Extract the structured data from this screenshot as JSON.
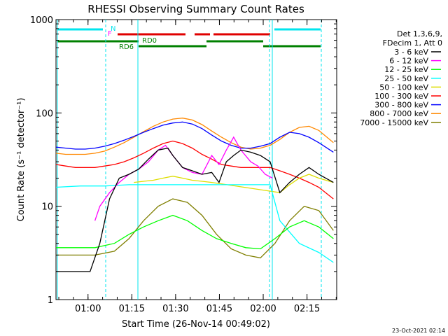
{
  "chart_data": {
    "type": "line",
    "title": "RHESSI Observing Summary Count Rates",
    "xlabel": "Start Time (26-Nov-14 00:49:02)",
    "ylabel": "Count Rate (s⁻¹ detector⁻¹)",
    "yscale": "log",
    "ylim": [
      1,
      1000
    ],
    "xlim": [
      0,
      5768
    ],
    "x_units": "seconds after 26-Nov-14 00:49:02",
    "x_ticks": [
      {
        "label": "01:00",
        "value": 658
      },
      {
        "label": "01:15",
        "value": 1558
      },
      {
        "label": "01:30",
        "value": 2458
      },
      {
        "label": "01:45",
        "value": 3358
      },
      {
        "label": "02:00",
        "value": 4258
      },
      {
        "label": "02:15",
        "value": 5158
      }
    ],
    "y_ticks": [
      {
        "label": "1",
        "value": 1
      },
      {
        "label": "10",
        "value": 10
      },
      {
        "label": "100",
        "value": 100
      },
      {
        "label": "1000",
        "value": 1000
      }
    ],
    "legend_header": [
      "Det 1,3,6,9,",
      "FDecim 1, Att 0"
    ],
    "legend_placement": "right",
    "footer_date": "23-Oct-2021 02:14",
    "flags": [
      {
        "label": "N",
        "color": "#00e5ee"
      },
      {
        "label": "F",
        "color": "#ff00ff"
      },
      {
        "label": "RD0",
        "color": "#008000"
      },
      {
        "label": "RD6",
        "color": "#008000"
      }
    ],
    "series": [
      {
        "name": "3 - 6 keV",
        "color": "#000000",
        "x": [
          0,
          700,
          900,
          1100,
          1300,
          1500,
          1700,
          1900,
          2100,
          2300,
          2400,
          2600,
          2800,
          3000,
          3200,
          3350,
          3500,
          3650,
          3800,
          4000,
          4200,
          4400,
          4600,
          4800,
          5000,
          5200,
          5400,
          5700
        ],
        "values": [
          2,
          2,
          4,
          12,
          20,
          22,
          25,
          32,
          40,
          42,
          35,
          26,
          24,
          22,
          23,
          18,
          30,
          35,
          40,
          38,
          35,
          30,
          14,
          18,
          22,
          26,
          22,
          18
        ]
      },
      {
        "name": "6 - 12 keV",
        "color": "#ff00ff",
        "x": [
          800,
          900,
          1100,
          1300,
          1500,
          1700,
          1900,
          2100,
          2250,
          2400,
          2600,
          2800,
          3000,
          3200,
          3350,
          3500,
          3650,
          3800,
          4000,
          4150,
          4300,
          4450
        ],
        "values": [
          7,
          10,
          14,
          18,
          22,
          25,
          30,
          40,
          45,
          35,
          26,
          23,
          22,
          35,
          28,
          40,
          55,
          40,
          30,
          27,
          22,
          20
        ]
      },
      {
        "name": "12 - 25 keV",
        "color": "#00ff00",
        "x": [
          0,
          800,
          1200,
          1500,
          1800,
          2100,
          2400,
          2700,
          3000,
          3300,
          3600,
          3900,
          4200,
          4500,
          4800,
          5100,
          5400,
          5700
        ],
        "values": [
          3.6,
          3.6,
          4,
          5,
          6,
          7,
          8,
          7,
          5.5,
          4.5,
          4,
          3.6,
          3.5,
          4.5,
          6,
          7,
          6,
          4.5
        ]
      },
      {
        "name": "25 - 50 keV",
        "color": "#00ffff",
        "x": [
          0,
          500,
          1000,
          1500,
          2000,
          2500,
          3000,
          3500,
          4000,
          4400,
          4600,
          5000,
          5400,
          5700
        ],
        "values": [
          16,
          16.5,
          16.5,
          17,
          17,
          17,
          17,
          17,
          17,
          17,
          7,
          4,
          3.2,
          2.5
        ]
      },
      {
        "name": "50 - 100 keV",
        "color": "#dddd00",
        "x": [
          1600,
          1800,
          2000,
          2200,
          2400,
          2600,
          2800,
          3000,
          3200,
          4600,
          4800,
          5000,
          5200,
          5400,
          5700
        ],
        "values": [
          18,
          18.5,
          19,
          20,
          21,
          20,
          19,
          18.5,
          18,
          14,
          17,
          20,
          22,
          20,
          18
        ]
      },
      {
        "name": "100 - 300 keV",
        "color": "#ff0000",
        "x": [
          0,
          200,
          400,
          600,
          800,
          1000,
          1200,
          1400,
          1600,
          1800,
          2000,
          2200,
          2400,
          2600,
          2800,
          3000,
          3200,
          3400,
          3600,
          3800,
          4000,
          4200,
          4400,
          4600,
          4800,
          5000,
          5200,
          5400,
          5700
        ],
        "values": [
          28,
          27,
          26,
          26,
          26,
          27,
          28,
          30,
          33,
          37,
          42,
          47,
          50,
          47,
          42,
          36,
          32,
          28,
          27,
          26,
          26,
          26,
          26,
          24,
          22,
          20,
          18,
          16,
          12
        ]
      },
      {
        "name": "300 - 800 keV",
        "color": "#0000ff",
        "x": [
          0,
          200,
          400,
          600,
          800,
          1000,
          1200,
          1400,
          1600,
          1800,
          2000,
          2200,
          2400,
          2600,
          2800,
          3000,
          3200,
          3400,
          3600,
          3800,
          4000,
          4200,
          4400,
          4600,
          4800,
          5000,
          5200,
          5400,
          5700
        ],
        "values": [
          43,
          42,
          41,
          41,
          42,
          44,
          47,
          51,
          56,
          62,
          68,
          74,
          78,
          80,
          76,
          68,
          58,
          50,
          45,
          42,
          42,
          44,
          47,
          55,
          62,
          60,
          55,
          48,
          38
        ]
      },
      {
        "name": "800 - 7000 keV",
        "color": "#ff8800",
        "x": [
          0,
          200,
          400,
          600,
          800,
          1000,
          1200,
          1400,
          1600,
          1800,
          2000,
          2200,
          2400,
          2600,
          2800,
          3000,
          3200,
          3400,
          3600,
          3800,
          4000,
          4200,
          4400,
          4600,
          4800,
          5000,
          5200,
          5400,
          5700
        ],
        "values": [
          37,
          36,
          36,
          36,
          37,
          39,
          43,
          48,
          55,
          63,
          72,
          80,
          86,
          88,
          84,
          75,
          64,
          55,
          48,
          43,
          41,
          42,
          45,
          52,
          62,
          70,
          72,
          65,
          48
        ]
      },
      {
        "name": "7000 - 15000 keV",
        "color": "#7f7f00",
        "x": [
          0,
          800,
          1200,
          1500,
          1800,
          2100,
          2400,
          2700,
          3000,
          3300,
          3600,
          3900,
          4200,
          4500,
          4800,
          5100,
          5400,
          5700
        ],
        "values": [
          3,
          3,
          3.3,
          4.5,
          7,
          10,
          12,
          11,
          8,
          5,
          3.5,
          3,
          2.8,
          4,
          7,
          10,
          9,
          5.5
        ]
      }
    ]
  }
}
